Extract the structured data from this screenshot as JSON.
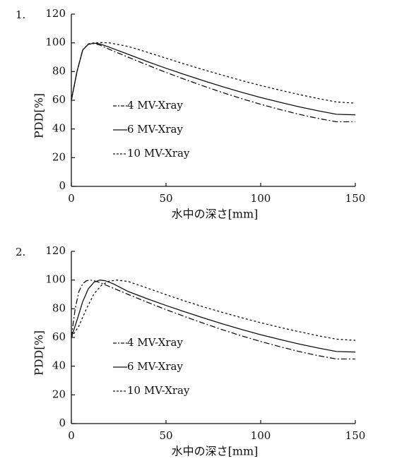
{
  "chart_data": [
    {
      "type": "line",
      "panel_label": "1.",
      "xlabel": "水中の深さ[mm]",
      "ylabel": "PDD[%]",
      "xlim": [
        0,
        150
      ],
      "ylim": [
        0,
        120
      ],
      "xticks": [
        0,
        50,
        100,
        150
      ],
      "yticks": [
        0,
        20,
        40,
        60,
        80,
        100,
        120
      ],
      "grid": false,
      "legend_position": "lower-left",
      "series": [
        {
          "name": "4 MV-Xray",
          "style": "dash-dot",
          "x": [
            0,
            3,
            6,
            9,
            12,
            15,
            20,
            30,
            40,
            50,
            60,
            70,
            80,
            90,
            100,
            110,
            120,
            130,
            140,
            150
          ],
          "y": [
            60,
            80,
            95,
            99,
            99.5,
            98.5,
            95.5,
            90,
            84.6,
            79.4,
            74.5,
            69.8,
            65.3,
            61.1,
            57.2,
            53.6,
            50.3,
            47.4,
            45,
            45
          ]
        },
        {
          "name": "6 MV-Xray",
          "style": "solid",
          "x": [
            0,
            3,
            6,
            9,
            12,
            15,
            20,
            30,
            40,
            50,
            60,
            70,
            80,
            90,
            100,
            110,
            120,
            130,
            140,
            150
          ],
          "y": [
            60,
            80,
            95,
            99,
            99.8,
            99.3,
            97,
            92,
            87,
            82.3,
            77.8,
            73.5,
            69.4,
            65.5,
            61.9,
            58.6,
            55.5,
            52.7,
            50.2,
            49.8
          ]
        },
        {
          "name": "10 MV-Xray",
          "style": "dashed",
          "x": [
            0,
            3,
            6,
            9,
            12,
            15,
            20,
            30,
            40,
            50,
            60,
            70,
            80,
            90,
            100,
            110,
            120,
            130,
            140,
            150
          ],
          "y": [
            60,
            80,
            95,
            99.3,
            100,
            100.2,
            100,
            97.5,
            93.5,
            89.3,
            85.2,
            81.2,
            77.4,
            73.7,
            70.3,
            67.1,
            64.1,
            61.3,
            58.8,
            58
          ]
        }
      ]
    },
    {
      "type": "line",
      "panel_label": "2.",
      "xlabel": "水中の深さ[mm]",
      "ylabel": "PDD[%]",
      "xlim": [
        0,
        150
      ],
      "ylim": [
        0,
        120
      ],
      "xticks": [
        0,
        50,
        100,
        150
      ],
      "yticks": [
        0,
        20,
        40,
        60,
        80,
        100,
        120
      ],
      "grid": false,
      "legend_position": "lower-left",
      "series": [
        {
          "name": "4 MV-Xray",
          "style": "dash-dot",
          "x": [
            0,
            2,
            4,
            6,
            8,
            10,
            12,
            15,
            20,
            30,
            40,
            50,
            60,
            70,
            80,
            90,
            100,
            110,
            120,
            130,
            140,
            150
          ],
          "y": [
            60,
            80,
            92,
            97.5,
            99.5,
            100,
            99.5,
            98.3,
            95.5,
            90,
            84.6,
            79.4,
            74.5,
            69.8,
            65.3,
            61.1,
            57.2,
            53.6,
            50.3,
            47.4,
            45,
            45
          ]
        },
        {
          "name": "6 MV-Xray",
          "style": "solid",
          "x": [
            0,
            3,
            6,
            9,
            12,
            15,
            18,
            22,
            30,
            40,
            50,
            60,
            70,
            80,
            90,
            100,
            110,
            120,
            130,
            140,
            150
          ],
          "y": [
            60,
            72,
            85,
            94,
            98.5,
            100,
            99.5,
            97.5,
            92,
            87,
            82.3,
            77.8,
            73.5,
            69.4,
            65.5,
            61.9,
            58.6,
            55.5,
            52.7,
            50.2,
            49.8
          ]
        },
        {
          "name": "10 MV-Xray",
          "style": "dashed",
          "x": [
            0,
            4,
            8,
            12,
            16,
            20,
            24,
            30,
            40,
            50,
            60,
            70,
            80,
            90,
            100,
            110,
            120,
            130,
            140,
            150
          ],
          "y": [
            60,
            68,
            80,
            90.5,
            96.5,
            99.2,
            100,
            99,
            94.5,
            89.8,
            85.4,
            81.2,
            77.4,
            73.7,
            70.3,
            67.1,
            64.1,
            61.3,
            58.8,
            58
          ]
        }
      ]
    }
  ]
}
